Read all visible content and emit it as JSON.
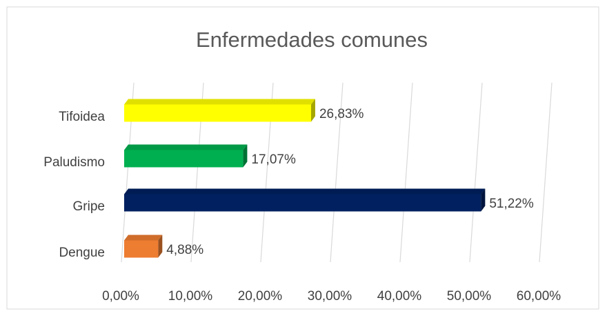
{
  "chart_data": {
    "type": "bar3d_horizontal",
    "title": "Enfermedades comunes",
    "categories": [
      "Tifoidea",
      "Paludismo",
      "Gripe",
      "Dengue"
    ],
    "values": [
      26.83,
      17.07,
      51.22,
      4.88
    ],
    "value_labels": [
      "26,83%",
      "17,07%",
      "51,22%",
      "4,88%"
    ],
    "colors": [
      "#ffff00",
      "#00b050",
      "#002060",
      "#ed7d31"
    ],
    "xlim": [
      0,
      60
    ],
    "xticks": [
      {
        "value": 0,
        "label": "0,00%"
      },
      {
        "value": 10,
        "label": "10,00%"
      },
      {
        "value": 20,
        "label": "20,00%"
      },
      {
        "value": 30,
        "label": "30,00%"
      },
      {
        "value": 40,
        "label": "40,00%"
      },
      {
        "value": 50,
        "label": "50,00%"
      },
      {
        "value": 60,
        "label": "60,00%"
      }
    ],
    "grid": true
  }
}
